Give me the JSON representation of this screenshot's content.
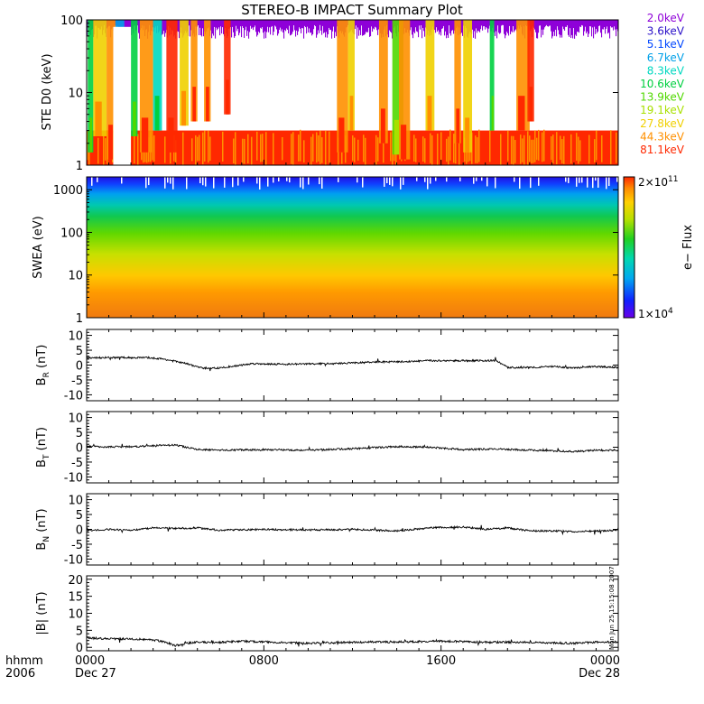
{
  "title": "STEREO-B IMPACT Summary Plot",
  "timestamp_stamp": "Mon Jun 25 15:15:08 2007",
  "bottom_labels": {
    "format": "hhmm",
    "year": "2006"
  },
  "chart_data": [
    {
      "type": "line",
      "id": "ste",
      "ylabel": "STE D0 (keV)",
      "yscale": "log",
      "ylim": [
        1,
        100
      ],
      "yticks": [
        1,
        10,
        100
      ],
      "legend_position": "right",
      "series": [
        {
          "name": "2.0keV",
          "color": "#8e00d8"
        },
        {
          "name": "3.6keV",
          "color": "#2a10c8"
        },
        {
          "name": "5.1keV",
          "color": "#0046ff"
        },
        {
          "name": "6.7keV",
          "color": "#00a0e8"
        },
        {
          "name": "8.3keV",
          "color": "#00d8c0"
        },
        {
          "name": "10.6keV",
          "color": "#00d040"
        },
        {
          "name": "13.9keV",
          "color": "#50d800"
        },
        {
          "name": "19.1keV",
          "color": "#a8e000"
        },
        {
          "name": "27.8keV",
          "color": "#f0d000"
        },
        {
          "name": "44.3keV",
          "color": "#ff9000"
        },
        {
          "name": "81.1keV",
          "color": "#ff2800"
        }
      ]
    },
    {
      "type": "heatmap",
      "id": "swea",
      "ylabel": "SWEA (eV)",
      "yscale": "log",
      "ylim": [
        1,
        2000
      ],
      "yticks": [
        1,
        10,
        100,
        1000
      ],
      "colorbar": {
        "label": "e− Flux",
        "max_base": "2×10",
        "max_exp": "11",
        "min_base": "1×10",
        "min_exp": "4",
        "range": [
          10000,
          200000000000
        ]
      }
    },
    {
      "type": "line",
      "id": "br",
      "ylabel_main": "B",
      "ylabel_sub": "R",
      "ylabel_unit": "(nT)",
      "ylim": [
        -12,
        12
      ],
      "yticks": [
        -10,
        -5,
        0,
        5,
        10
      ],
      "x": [
        0,
        1.5,
        2.8,
        3.5,
        4.5,
        5.2,
        6.0,
        7.5,
        9,
        11,
        13,
        14.5,
        15.5,
        17,
        18.5,
        19.0,
        20,
        21,
        22,
        23,
        24
      ],
      "values": [
        2.5,
        2.5,
        2.5,
        2.0,
        0.5,
        -1.0,
        -1.0,
        0.5,
        0.3,
        0.5,
        1.0,
        1.2,
        1.5,
        1.5,
        1.5,
        -0.8,
        -0.8,
        -0.5,
        -1.0,
        -0.5,
        -0.8
      ]
    },
    {
      "type": "line",
      "id": "bt",
      "ylabel_main": "B",
      "ylabel_sub": "T",
      "ylabel_unit": "(nT)",
      "ylim": [
        -12,
        12
      ],
      "yticks": [
        -10,
        -5,
        0,
        5,
        10
      ],
      "x": [
        0,
        1,
        2,
        3,
        4,
        5,
        6,
        8,
        10,
        12,
        14,
        15.5,
        17,
        18.5,
        20,
        21,
        22,
        23,
        24
      ],
      "values": [
        0.3,
        0.1,
        0.2,
        0.5,
        0.8,
        -0.8,
        -1.0,
        -0.8,
        -1.0,
        -0.5,
        0.2,
        0.0,
        -0.8,
        -0.6,
        -1.0,
        -1.2,
        -1.5,
        -1.0,
        -1.0
      ]
    },
    {
      "type": "line",
      "id": "bn",
      "ylabel_main": "B",
      "ylabel_sub": "N",
      "ylabel_unit": "(nT)",
      "ylim": [
        -12,
        12
      ],
      "yticks": [
        -10,
        -5,
        0,
        5,
        10
      ],
      "x": [
        0,
        1,
        2,
        3,
        4,
        5,
        6,
        8,
        10,
        12,
        14,
        15.5,
        17,
        18,
        19,
        20,
        21,
        22,
        23,
        24
      ],
      "values": [
        -0.5,
        0.0,
        -0.3,
        0.5,
        0.3,
        0.5,
        -0.3,
        0.0,
        -0.2,
        0.0,
        -0.5,
        0.5,
        0.8,
        0.0,
        0.5,
        -0.5,
        -0.5,
        -0.8,
        -0.5,
        -0.3
      ]
    },
    {
      "type": "line",
      "id": "bmag",
      "ylabel_main": "|B|",
      "ylabel_unit": "(nT)",
      "ylim": [
        -1,
        21
      ],
      "yticks": [
        0,
        5,
        10,
        15,
        20
      ],
      "x": [
        0,
        1,
        2,
        3,
        3.6,
        4,
        4.5,
        5,
        6,
        7,
        8,
        10,
        12,
        14,
        16,
        17,
        18,
        19,
        20,
        21,
        22,
        23,
        24
      ],
      "values": [
        2.8,
        2.5,
        2.5,
        2.2,
        1.5,
        0.5,
        1.2,
        1.5,
        1.5,
        1.8,
        1.6,
        1.2,
        1.5,
        1.6,
        1.8,
        1.7,
        1.5,
        1.5,
        1.5,
        1.3,
        1.2,
        1.5,
        1.6
      ]
    }
  ],
  "xaxis": {
    "ticks": [
      {
        "hour": 0,
        "label": "0000",
        "date": "Dec 27"
      },
      {
        "hour": 8,
        "label": "0800",
        "date": ""
      },
      {
        "hour": 16,
        "label": "1600",
        "date": ""
      },
      {
        "hour": 24,
        "label": "0000",
        "date": "Dec 28"
      }
    ]
  }
}
